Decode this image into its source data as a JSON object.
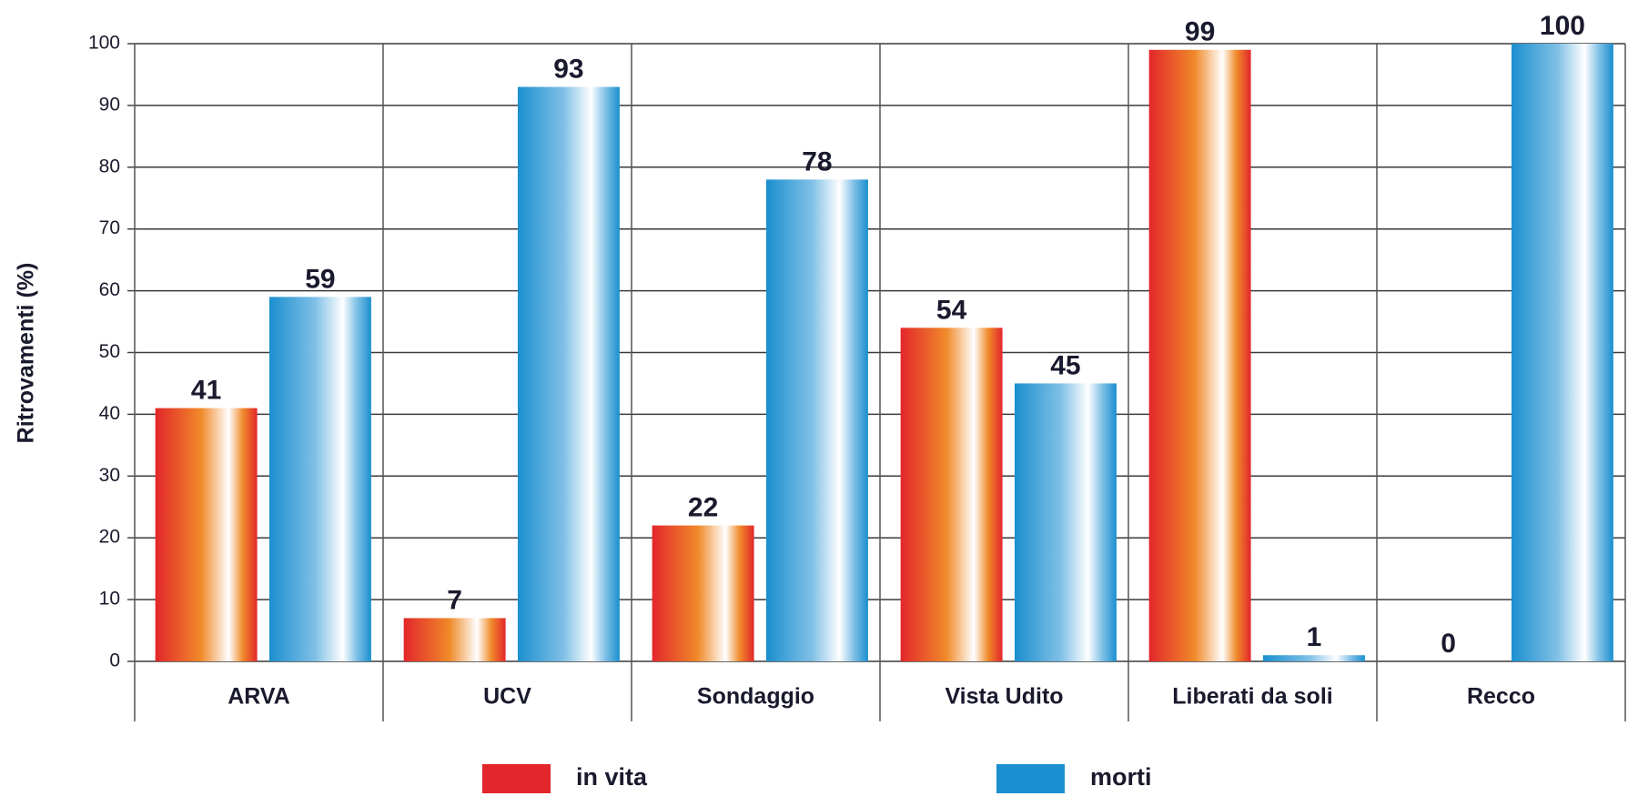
{
  "chart_data": {
    "type": "bar",
    "y_label": "Ritrovamenti (%)",
    "categories": [
      "ARVA",
      "UCV",
      "Sondaggio",
      "Vista Udito",
      "Liberati da soli",
      "Recco"
    ],
    "series": [
      {
        "name": "in vita",
        "color": "#e3262b",
        "values": [
          41,
          7,
          22,
          54,
          99,
          0
        ]
      },
      {
        "name": "morti",
        "color": "#1b8fcf",
        "values": [
          59,
          93,
          78,
          45,
          1,
          100
        ]
      }
    ],
    "ylim": [
      0,
      100
    ],
    "yticks": [
      0,
      10,
      20,
      30,
      40,
      50,
      60,
      70,
      80,
      90,
      100
    ],
    "grid": true,
    "legend": "bottom"
  }
}
